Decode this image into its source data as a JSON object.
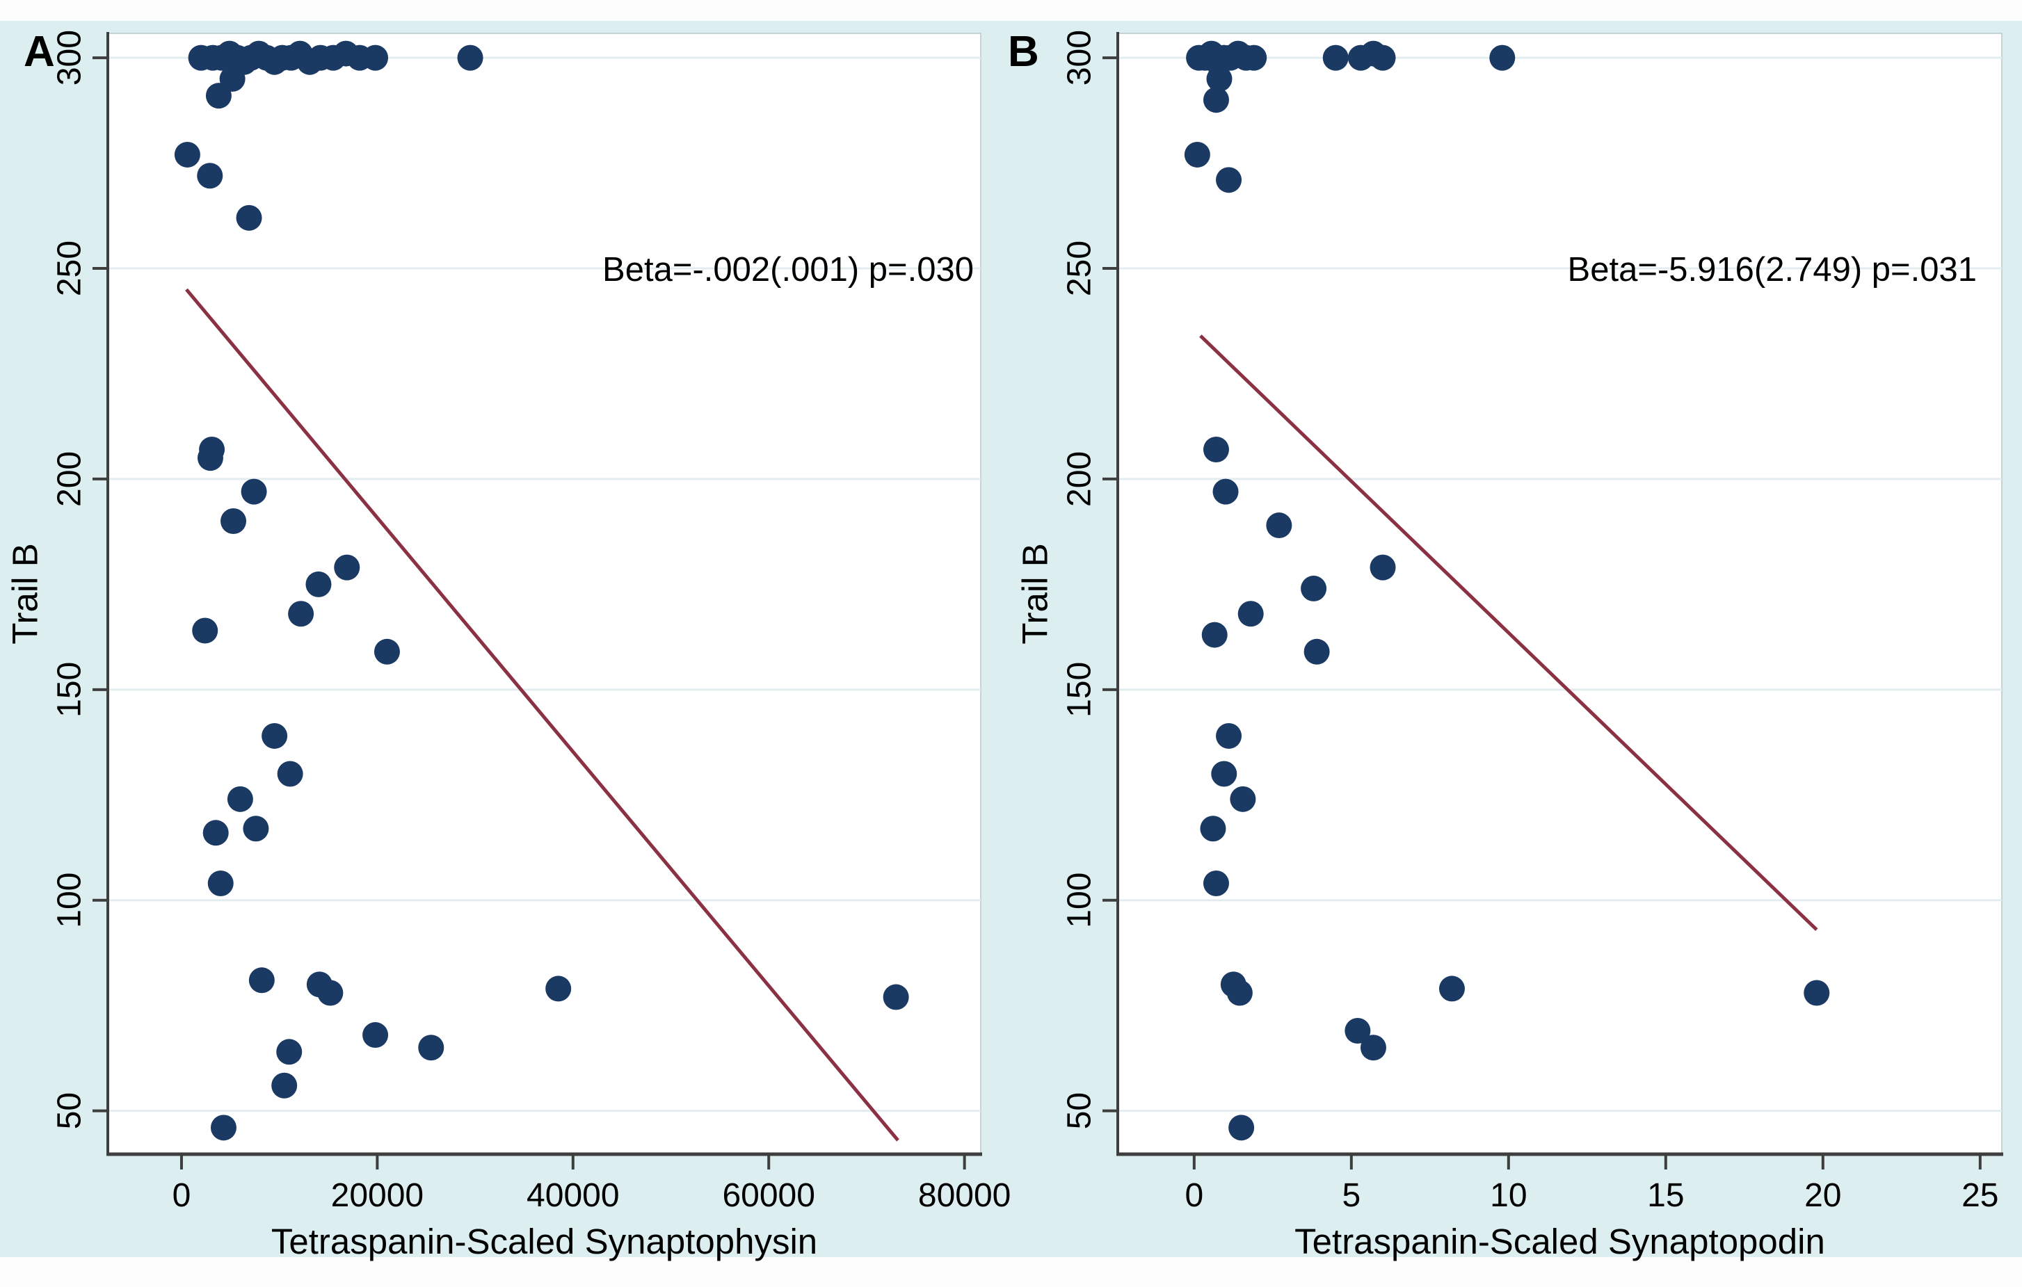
{
  "figure": {
    "background_color": "#ddeef0",
    "plot_background_color": "#ffffff",
    "dot_color": "#1b3a63",
    "fit_line_color": "#8b3144",
    "grid_color": "#e3edef",
    "spine_color": "#3e3e3e",
    "box_border_color": "#c5d3d6",
    "text_color": "#000000"
  },
  "chart_data": [
    {
      "type": "scatter",
      "panel_label": "A",
      "annotation": "Beta=-.002(.001) p=.030",
      "xlabel": "Tetraspanin-Scaled Synaptophysin",
      "ylabel": "Trail B",
      "x_ticks": [
        0,
        20000,
        40000,
        60000,
        80000
      ],
      "y_ticks": [
        50,
        100,
        150,
        200,
        250,
        300
      ],
      "x_domain": [
        -7530,
        81660
      ],
      "y_domain": [
        39.7,
        305.8
      ],
      "grid": "horizontal-only",
      "legend": "none",
      "fit_line": {
        "x1": 500,
        "y1": 245,
        "x2": 73200,
        "y2": 43
      },
      "points": [
        [
          2000,
          300
        ],
        [
          3200,
          300
        ],
        [
          4100,
          300
        ],
        [
          4900,
          301
        ],
        [
          5700,
          300
        ],
        [
          6400,
          299
        ],
        [
          7100,
          300
        ],
        [
          7900,
          301
        ],
        [
          8700,
          300
        ],
        [
          9500,
          299
        ],
        [
          10300,
          300
        ],
        [
          11200,
          300
        ],
        [
          12100,
          301
        ],
        [
          13100,
          299
        ],
        [
          14200,
          300
        ],
        [
          15500,
          300
        ],
        [
          16800,
          301
        ],
        [
          18200,
          300
        ],
        [
          19800,
          300
        ],
        [
          29500,
          300
        ],
        [
          5200,
          295
        ],
        [
          3800,
          291
        ],
        [
          600,
          277
        ],
        [
          2900,
          272
        ],
        [
          6900,
          262
        ],
        [
          3100,
          207
        ],
        [
          2950,
          205
        ],
        [
          7400,
          197
        ],
        [
          5300,
          190
        ],
        [
          16900,
          179
        ],
        [
          14000,
          175
        ],
        [
          12200,
          168
        ],
        [
          2400,
          164
        ],
        [
          21000,
          159
        ],
        [
          9500,
          139
        ],
        [
          11100,
          130
        ],
        [
          6000,
          124
        ],
        [
          7600,
          117
        ],
        [
          3500,
          116
        ],
        [
          4000,
          104
        ],
        [
          8200,
          81
        ],
        [
          14100,
          80
        ],
        [
          15200,
          78
        ],
        [
          38500,
          79
        ],
        [
          73000,
          77
        ],
        [
          11000,
          64
        ],
        [
          10500,
          56
        ],
        [
          19800,
          68
        ],
        [
          25500,
          65
        ],
        [
          4300,
          46
        ]
      ]
    },
    {
      "type": "scatter",
      "panel_label": "B",
      "annotation": "Beta=-5.916(2.749) p=.031",
      "xlabel": "Tetraspanin-Scaled Synaptopodin",
      "ylabel": "Trail B",
      "x_ticks": [
        0,
        5,
        10,
        15,
        20,
        25
      ],
      "y_ticks": [
        50,
        100,
        150,
        200,
        250,
        300
      ],
      "x_domain": [
        -2.43,
        25.69
      ],
      "y_domain": [
        39.7,
        305.8
      ],
      "grid": "horizontal-only",
      "legend": "none",
      "fit_line": {
        "x1": 0.2,
        "y1": 234,
        "x2": 19.8,
        "y2": 93
      },
      "points": [
        [
          0.15,
          300
        ],
        [
          0.35,
          300
        ],
        [
          0.55,
          301
        ],
        [
          0.75,
          299
        ],
        [
          0.95,
          300
        ],
        [
          1.15,
          300
        ],
        [
          1.4,
          301
        ],
        [
          1.65,
          300
        ],
        [
          1.9,
          300
        ],
        [
          4.5,
          300
        ],
        [
          5.3,
          300
        ],
        [
          5.7,
          301
        ],
        [
          6.0,
          300
        ],
        [
          9.8,
          300
        ],
        [
          0.8,
          295
        ],
        [
          0.7,
          290
        ],
        [
          0.1,
          277
        ],
        [
          1.1,
          271
        ],
        [
          0.7,
          207
        ],
        [
          1.0,
          197
        ],
        [
          2.7,
          189
        ],
        [
          6.0,
          179
        ],
        [
          3.8,
          174
        ],
        [
          1.8,
          168
        ],
        [
          0.65,
          163
        ],
        [
          3.9,
          159
        ],
        [
          1.1,
          139
        ],
        [
          0.95,
          130
        ],
        [
          1.55,
          124
        ],
        [
          0.6,
          117
        ],
        [
          0.7,
          104
        ],
        [
          1.25,
          80
        ],
        [
          1.45,
          78
        ],
        [
          8.2,
          79
        ],
        [
          5.2,
          69
        ],
        [
          5.7,
          65
        ],
        [
          19.8,
          78
        ],
        [
          1.5,
          46
        ]
      ]
    }
  ]
}
